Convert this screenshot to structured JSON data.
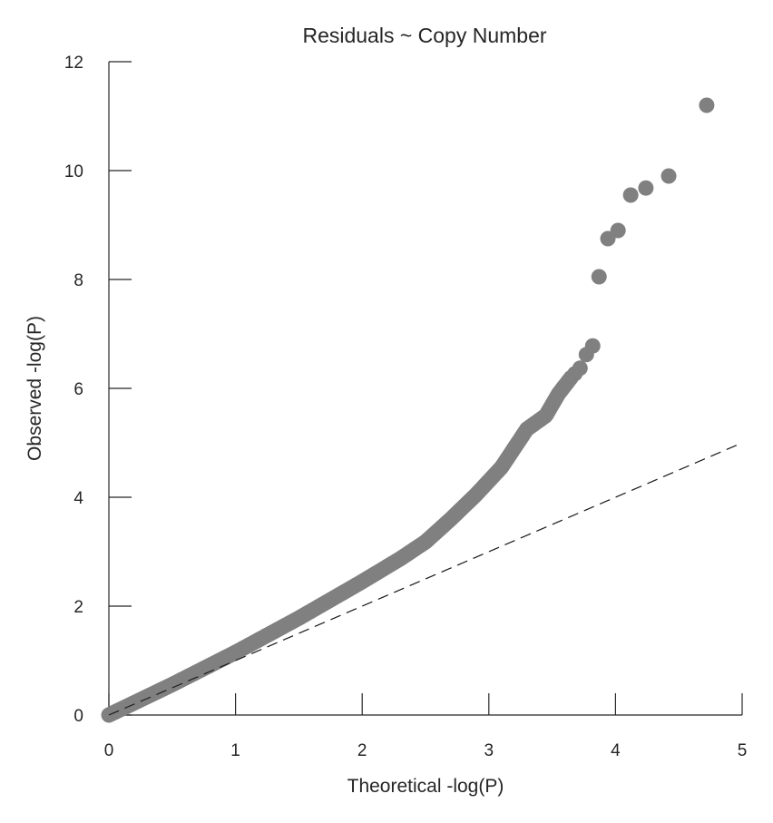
{
  "chart_data": {
    "type": "scatter",
    "title": "Residuals ~ Copy Number",
    "xlabel": "Theoretical -log(P)",
    "ylabel": "Observed -log(P)",
    "xlim": [
      0,
      5
    ],
    "ylim": [
      0,
      12
    ],
    "xticks": [
      "0",
      "1",
      "2",
      "3",
      "4",
      "5"
    ],
    "yticks": [
      "0",
      "2",
      "4",
      "6",
      "8",
      "10",
      "12"
    ],
    "grid": false,
    "legend": "none",
    "colors": {
      "points": "#808080",
      "reference_line": "#1a1a1a",
      "axes": "#262626"
    },
    "reference_line": {
      "style": "dashed",
      "x": [
        0,
        5
      ],
      "y": [
        0,
        5
      ]
    },
    "trend_points": [
      [
        0,
        0
      ],
      [
        0.5,
        0.56
      ],
      [
        1,
        1.15
      ],
      [
        1.5,
        1.78
      ],
      [
        2,
        2.45
      ],
      [
        2.3,
        2.87
      ],
      [
        2.5,
        3.18
      ],
      [
        2.7,
        3.6
      ],
      [
        2.9,
        4.05
      ],
      [
        3.1,
        4.55
      ],
      [
        3.3,
        5.25
      ],
      [
        3.45,
        5.5
      ],
      [
        3.55,
        5.9
      ],
      [
        3.65,
        6.2
      ]
    ],
    "outliers": [
      [
        3.68,
        6.27
      ],
      [
        3.72,
        6.37
      ],
      [
        3.77,
        6.62
      ],
      [
        3.82,
        6.78
      ],
      [
        3.87,
        8.05
      ],
      [
        3.94,
        8.75
      ],
      [
        4.02,
        8.9
      ],
      [
        4.12,
        9.55
      ],
      [
        4.24,
        9.68
      ],
      [
        4.42,
        9.9
      ],
      [
        4.72,
        11.2
      ]
    ]
  }
}
